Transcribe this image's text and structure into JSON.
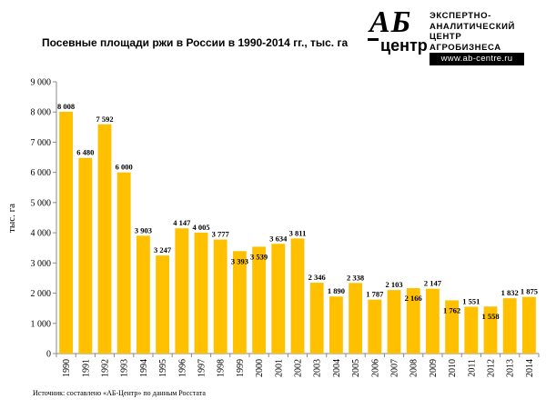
{
  "header": {
    "title": "Посевные площади ржи в России в 1990-2014 гг., тыс. га"
  },
  "logo": {
    "mark_top": "АБ",
    "mark_bottom": "центр",
    "line1": "ЭКСПЕРТНО-",
    "line2": "АНАЛИТИЧЕСКИЙ",
    "line3": "ЦЕНТР",
    "line4": "АГРОБИЗНЕСА",
    "url": "www.ab-centre.ru"
  },
  "source": "Источник:  составлено «АБ-Центр»  по данным Росстата",
  "colors": {
    "bar": "#FFC000",
    "axis": "#888888",
    "grid": "#dddddd"
  },
  "chart_data": {
    "type": "bar",
    "title": "Посевные площади ржи в России в 1990-2014 гг., тыс. га",
    "xlabel": "",
    "ylabel": "тыс. га",
    "ylim": [
      0,
      9000
    ],
    "yticks": [
      "0",
      "1 000",
      "2 000",
      "3 000",
      "4 000",
      "5 000",
      "6 000",
      "7 000",
      "8 000",
      "9 000"
    ],
    "categories": [
      "1990",
      "1991",
      "1992",
      "1993",
      "1994",
      "1995",
      "1996",
      "1997",
      "1998",
      "1999",
      "2000",
      "2001",
      "2002",
      "2003",
      "2004",
      "2005",
      "2006",
      "2007",
      "2008",
      "2009",
      "2010",
      "2011",
      "2012",
      "2013",
      "2014"
    ],
    "values": [
      8008,
      6480,
      7592,
      6000,
      3903,
      3247,
      4147,
      4005,
      3777,
      3393,
      3539,
      3634,
      3811,
      2346,
      1890,
      2338,
      1787,
      2103,
      2166,
      2147,
      1762,
      1551,
      1558,
      1832,
      1875
    ],
    "labels": [
      "8 008",
      "6 480",
      "7 592",
      "6 000",
      "3 903",
      "3 247",
      "4 147",
      "4 005",
      "3 777",
      "3 393",
      "3 539",
      "3 634",
      "3 811",
      "2 346",
      "1 890",
      "2 338",
      "1 787",
      "2 103",
      "2 166",
      "2 147",
      "1 762",
      "1 551",
      "1 558",
      "1 832",
      "1 875"
    ],
    "label_inside": [
      false,
      false,
      false,
      false,
      false,
      false,
      false,
      false,
      false,
      true,
      true,
      false,
      false,
      false,
      false,
      false,
      false,
      false,
      true,
      false,
      true,
      false,
      true,
      false,
      false
    ],
    "grid": false,
    "legend": "none"
  }
}
